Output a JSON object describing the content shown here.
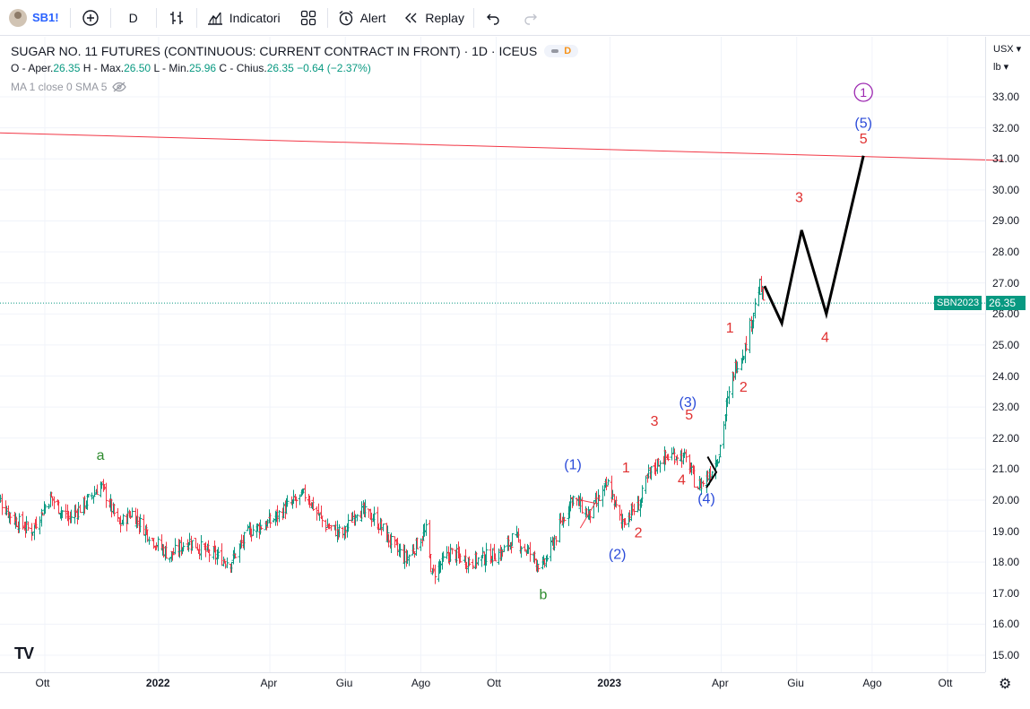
{
  "toolbar": {
    "symbol": "SB1!",
    "interval": "D",
    "indicators_label": "Indicatori",
    "alert_label": "Alert",
    "replay_label": "Replay"
  },
  "legend": {
    "title": "SUGAR NO. 11 FUTURES (CONTINUOUS: CURRENT CONTRACT IN FRONT) · 1D · ICEUS",
    "badge_letter": "D",
    "open_label": "O - Aper.",
    "open": "26.35",
    "high_label": "H - Max.",
    "high": "26.50",
    "low_label": "L - Min.",
    "low": "25.96",
    "close_label": "C - Chius.",
    "close": "26.35",
    "change": "−0.64 (−2.37%)",
    "ma_label": "MA 1 close 0 SMA 5"
  },
  "price_axis": {
    "currency": "USX",
    "unit": "lb",
    "ticks": [
      "33.00",
      "32.00",
      "31.00",
      "30.00",
      "29.00",
      "28.00",
      "27.00",
      "26.00",
      "25.00",
      "24.00",
      "23.00",
      "22.00",
      "21.00",
      "20.00",
      "19.00",
      "18.00",
      "17.00",
      "16.00",
      "15.00"
    ],
    "last_price": "26.35",
    "contract": "SBN2023"
  },
  "time_axis": {
    "labels": [
      "Ott",
      "2022",
      "Apr",
      "Giu",
      "Ago",
      "Ott",
      "2023",
      "Apr",
      "Giu",
      "Ago",
      "Ott"
    ]
  },
  "colors": {
    "up": "#26a69a",
    "down": "#ef5350",
    "bar_up": "#089981",
    "bar_down": "#f23645",
    "resistance": "#f23645",
    "wave_red": "#e03131",
    "wave_blue": "#2b4bd9",
    "wave_green": "#2e8b2e",
    "wave_purple": "#9c27b0"
  },
  "chart_data": {
    "type": "ohlc",
    "y_range": [
      14.6,
      34.0
    ],
    "last_price": 26.35,
    "resistance_line": {
      "from": {
        "date": "2021-08-15",
        "price": 31.85
      },
      "to": {
        "date": "2023-11-15",
        "price": 30.95
      }
    },
    "close_path": [
      [
        "2021-08-20",
        20.3
      ],
      [
        "2021-09-05",
        19.4
      ],
      [
        "2021-09-20",
        19.0
      ],
      [
        "2021-10-05",
        20.1
      ],
      [
        "2021-10-20",
        19.4
      ],
      [
        "2021-11-05",
        20.0
      ],
      [
        "2021-11-15",
        20.5
      ],
      [
        "2021-11-30",
        19.2
      ],
      [
        "2021-12-10",
        19.6
      ],
      [
        "2021-12-30",
        18.6
      ],
      [
        "2022-01-10",
        18.2
      ],
      [
        "2022-01-25",
        18.7
      ],
      [
        "2022-02-10",
        18.3
      ],
      [
        "2022-02-28",
        18.0
      ],
      [
        "2022-03-15",
        19.0
      ],
      [
        "2022-04-01",
        19.3
      ],
      [
        "2022-04-15",
        19.8
      ],
      [
        "2022-04-30",
        20.2
      ],
      [
        "2022-05-15",
        19.2
      ],
      [
        "2022-05-30",
        18.9
      ],
      [
        "2022-06-10",
        19.7
      ],
      [
        "2022-06-25",
        19.4
      ],
      [
        "2022-07-10",
        18.5
      ],
      [
        "2022-07-20",
        18.1
      ],
      [
        "2022-08-05",
        19.0
      ],
      [
        "2022-08-10",
        17.6
      ],
      [
        "2022-08-25",
        18.3
      ],
      [
        "2022-09-10",
        18.0
      ],
      [
        "2022-09-25",
        18.2
      ],
      [
        "2022-10-05",
        18.3
      ],
      [
        "2022-10-15",
        18.8
      ],
      [
        "2022-10-30",
        18.2
      ],
      [
        "2022-11-07",
        17.8
      ],
      [
        "2022-11-25",
        19.5
      ],
      [
        "2022-12-01",
        20.1
      ],
      [
        "2022-12-15",
        19.5
      ],
      [
        "2022-12-30",
        20.5
      ],
      [
        "2023-01-10",
        19.3
      ],
      [
        "2023-01-25",
        19.9
      ],
      [
        "2023-02-01",
        20.8
      ],
      [
        "2023-02-10",
        21.3
      ],
      [
        "2023-02-25",
        21.5
      ],
      [
        "2023-03-05",
        21.2
      ],
      [
        "2023-03-12",
        20.4
      ],
      [
        "2023-03-20",
        20.7
      ],
      [
        "2023-03-30",
        21.5
      ],
      [
        "2023-04-05",
        23.0
      ],
      [
        "2023-04-12",
        24.3
      ],
      [
        "2023-04-20",
        24.9
      ],
      [
        "2023-04-24",
        25.6
      ],
      [
        "2023-05-02",
        26.9
      ],
      [
        "2023-05-06",
        26.35
      ]
    ],
    "projection": [
      [
        "2023-05-06",
        26.9
      ],
      [
        "2023-05-20",
        25.7
      ],
      [
        "2023-06-05",
        28.7
      ],
      [
        "2023-06-25",
        26.0
      ],
      [
        "2023-07-25",
        31.1
      ]
    ],
    "wave_labels": [
      {
        "text": "a",
        "date": "2021-11-15",
        "price": 21.3,
        "color": "wave_green"
      },
      {
        "text": "b",
        "date": "2022-11-08",
        "price": 16.8,
        "color": "wave_green"
      },
      {
        "text": "(1)",
        "date": "2022-12-02",
        "price": 21.0,
        "color": "wave_blue"
      },
      {
        "text": "(2)",
        "date": "2023-01-07",
        "price": 18.1,
        "color": "wave_blue"
      },
      {
        "text": "(3)",
        "date": "2023-03-05",
        "price": 23.0,
        "color": "wave_blue"
      },
      {
        "text": "(4)",
        "date": "2023-03-20",
        "price": 19.9,
        "color": "wave_blue"
      },
      {
        "text": "(5)",
        "date": "2023-07-25",
        "price": 32.0,
        "color": "wave_blue"
      },
      {
        "text": "1",
        "date": "2023-07-25",
        "price": 33.0,
        "color": "wave_purple",
        "circled": true
      },
      {
        "text": "1",
        "date": "2023-01-14",
        "price": 20.9,
        "color": "wave_red"
      },
      {
        "text": "2",
        "date": "2023-01-24",
        "price": 18.8,
        "color": "wave_red"
      },
      {
        "text": "3",
        "date": "2023-02-06",
        "price": 22.4,
        "color": "wave_red"
      },
      {
        "text": "4",
        "date": "2023-02-28",
        "price": 20.5,
        "color": "wave_red"
      },
      {
        "text": "5",
        "date": "2023-03-06",
        "price": 22.6,
        "color": "wave_red"
      },
      {
        "text": "1",
        "date": "2023-04-08",
        "price": 25.4,
        "color": "wave_red"
      },
      {
        "text": "2",
        "date": "2023-04-19",
        "price": 23.5,
        "color": "wave_red"
      },
      {
        "text": "3",
        "date": "2023-06-03",
        "price": 29.6,
        "color": "wave_red"
      },
      {
        "text": "4",
        "date": "2023-06-24",
        "price": 25.1,
        "color": "wave_red"
      },
      {
        "text": "5",
        "date": "2023-07-25",
        "price": 31.5,
        "color": "wave_red"
      }
    ]
  }
}
